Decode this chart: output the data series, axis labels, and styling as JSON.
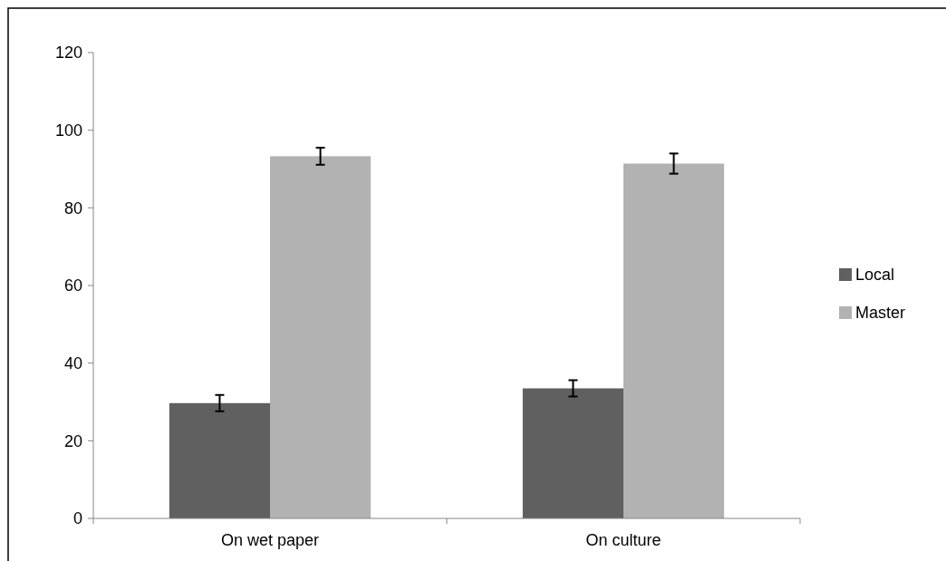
{
  "chart_data": {
    "type": "bar",
    "categories": [
      "On wet paper",
      "On culture"
    ],
    "series": [
      {
        "name": "Local",
        "color": "#606060",
        "values": [
          29.7,
          33.5
        ],
        "errors": [
          2.1,
          2.1
        ]
      },
      {
        "name": "Master",
        "color": "#b2b2b2",
        "values": [
          93.3,
          91.4
        ],
        "errors": [
          2.2,
          2.6
        ]
      }
    ],
    "ylim": [
      0,
      120
    ],
    "yticks": [
      0,
      20,
      40,
      60,
      80,
      100,
      120
    ],
    "grid": false,
    "legend": "right"
  }
}
